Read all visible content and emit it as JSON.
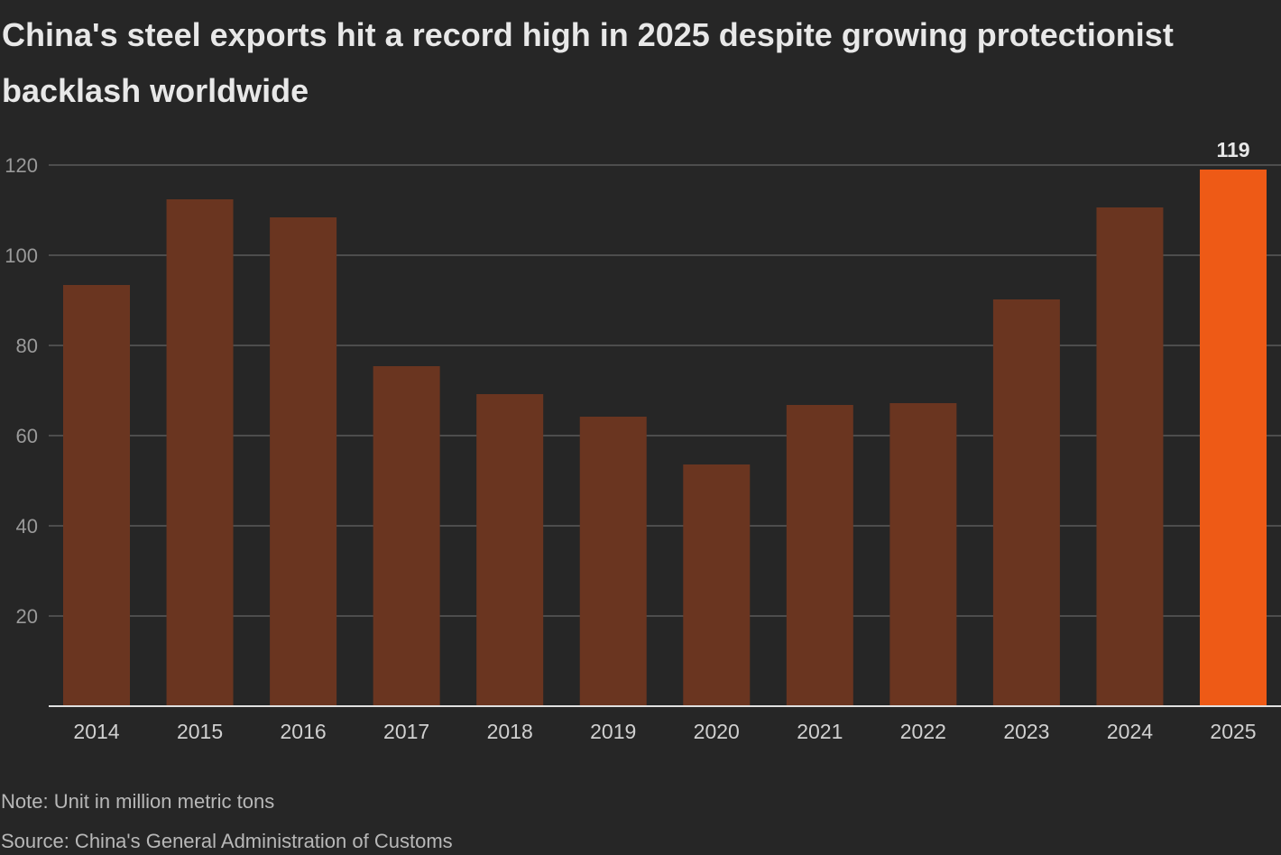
{
  "title": "China's steel exports hit a record high in 2025 despite growing protectionist backlash worldwide",
  "note": "Note: Unit in million metric tons",
  "source": "Source: China's General Administration of Customs",
  "chart_data": {
    "type": "bar",
    "categories": [
      "2014",
      "2015",
      "2016",
      "2017",
      "2018",
      "2019",
      "2020",
      "2021",
      "2022",
      "2023",
      "2024",
      "2025"
    ],
    "values": [
      93.4,
      112.4,
      108.4,
      75.4,
      69.2,
      64.2,
      53.6,
      66.8,
      67.2,
      90.2,
      110.6,
      119
    ],
    "data_labels": [
      {
        "category": "2025",
        "text": "119"
      }
    ],
    "ylim": [
      0,
      120
    ],
    "yticks": [
      20,
      40,
      60,
      80,
      100,
      120
    ],
    "grid": true,
    "colors": {
      "bar": "#6a3520",
      "highlight": "#ee5a16",
      "background": "#262626",
      "grid": "#5a5a5a"
    },
    "highlight_category": "2025"
  }
}
